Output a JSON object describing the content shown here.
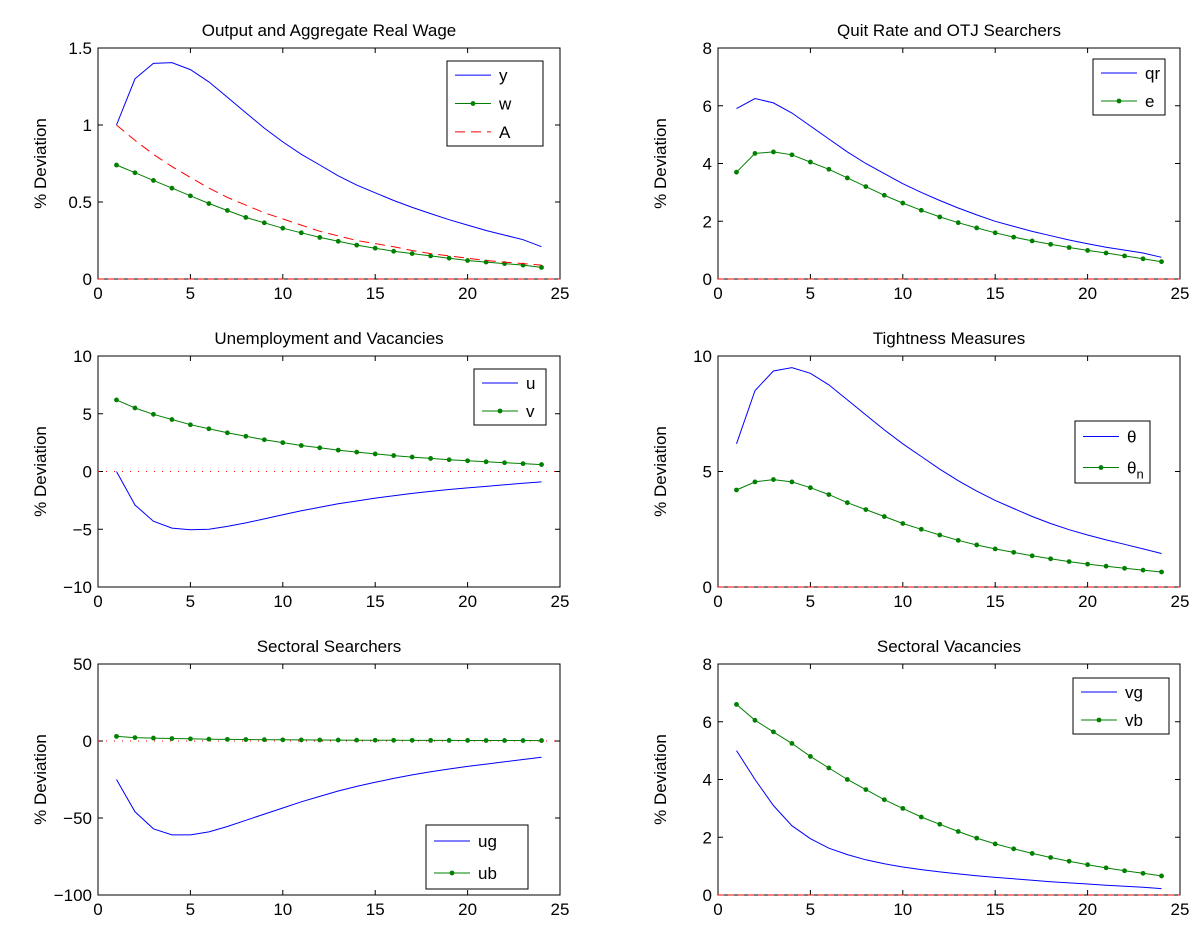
{
  "colors": {
    "series1": "#0000ff",
    "series2": "#008000",
    "series3": "#ff0000",
    "zero_line": "#ff0000",
    "axes": "#000000"
  },
  "chart_data": [
    {
      "type": "line",
      "title": "Output and Aggregate Real Wage",
      "ylabel": "% Deviation",
      "xlim": [
        0,
        25
      ],
      "ylim": [
        0,
        1.5
      ],
      "xticks": [
        0,
        5,
        10,
        15,
        20,
        25
      ],
      "yticks": [
        0,
        0.5,
        1,
        1.5
      ],
      "xtick_labels": [
        "0",
        "5",
        "10",
        "15",
        "20",
        "25"
      ],
      "ytick_labels": [
        "0",
        "0.5",
        "1",
        "1.5"
      ],
      "legend_position": "top-right",
      "zero_line": "dashed",
      "grid": false,
      "x": [
        1,
        2,
        3,
        4,
        5,
        6,
        7,
        8,
        9,
        10,
        11,
        12,
        13,
        14,
        15,
        16,
        17,
        18,
        19,
        20,
        21,
        22,
        23,
        24
      ],
      "series": [
        {
          "name": "y",
          "style": "solid",
          "color": "#0000ff",
          "values": [
            1.0,
            1.3,
            1.4,
            1.405,
            1.36,
            1.28,
            1.18,
            1.08,
            0.98,
            0.89,
            0.81,
            0.74,
            0.67,
            0.61,
            0.56,
            0.51,
            0.465,
            0.425,
            0.385,
            0.35,
            0.315,
            0.285,
            0.255,
            0.21
          ]
        },
        {
          "name": "w",
          "style": "dot-line",
          "color": "#008000",
          "values": [
            0.74,
            0.69,
            0.64,
            0.59,
            0.54,
            0.49,
            0.445,
            0.4,
            0.365,
            0.33,
            0.3,
            0.27,
            0.245,
            0.22,
            0.2,
            0.18,
            0.165,
            0.15,
            0.135,
            0.12,
            0.11,
            0.1,
            0.09,
            0.075
          ]
        },
        {
          "name": "A",
          "style": "dashed",
          "color": "#ff0000",
          "values": [
            1.0,
            0.9,
            0.81,
            0.73,
            0.66,
            0.59,
            0.53,
            0.48,
            0.43,
            0.39,
            0.35,
            0.31,
            0.28,
            0.25,
            0.23,
            0.21,
            0.185,
            0.165,
            0.15,
            0.135,
            0.12,
            0.11,
            0.1,
            0.09
          ]
        }
      ]
    },
    {
      "type": "line",
      "title": "Quit Rate and OTJ Searchers",
      "ylabel": "% Deviation",
      "xlim": [
        0,
        25
      ],
      "ylim": [
        0,
        8
      ],
      "xticks": [
        0,
        5,
        10,
        15,
        20,
        25
      ],
      "yticks": [
        0,
        2,
        4,
        6,
        8
      ],
      "xtick_labels": [
        "0",
        "5",
        "10",
        "15",
        "20",
        "25"
      ],
      "ytick_labels": [
        "0",
        "2",
        "4",
        "6",
        "8"
      ],
      "legend_position": "top-right",
      "zero_line": "dashed",
      "grid": false,
      "x": [
        1,
        2,
        3,
        4,
        5,
        6,
        7,
        8,
        9,
        10,
        11,
        12,
        13,
        14,
        15,
        16,
        17,
        18,
        19,
        20,
        21,
        22,
        23,
        24
      ],
      "series": [
        {
          "name": "qr",
          "style": "solid",
          "color": "#0000ff",
          "values": [
            5.9,
            6.25,
            6.1,
            5.75,
            5.3,
            4.85,
            4.4,
            4.0,
            3.65,
            3.3,
            3.0,
            2.72,
            2.46,
            2.22,
            2.0,
            1.82,
            1.65,
            1.5,
            1.35,
            1.22,
            1.1,
            1.0,
            0.9,
            0.75
          ]
        },
        {
          "name": "e",
          "style": "dot-line",
          "color": "#008000",
          "values": [
            3.7,
            4.35,
            4.4,
            4.3,
            4.05,
            3.8,
            3.5,
            3.2,
            2.9,
            2.63,
            2.38,
            2.15,
            1.95,
            1.77,
            1.6,
            1.45,
            1.32,
            1.2,
            1.09,
            0.99,
            0.9,
            0.8,
            0.7,
            0.6
          ]
        }
      ]
    },
    {
      "type": "line",
      "title": "Unemployment and Vacancies",
      "ylabel": "% Deviation",
      "xlim": [
        0,
        25
      ],
      "ylim": [
        -10,
        10
      ],
      "xticks": [
        0,
        5,
        10,
        15,
        20,
        25
      ],
      "yticks": [
        -10,
        -5,
        0,
        5,
        10
      ],
      "xtick_labels": [
        "0",
        "5",
        "10",
        "15",
        "20",
        "25"
      ],
      "ytick_labels": [
        "−10",
        "−5",
        "0",
        "5",
        "10"
      ],
      "legend_position": "top-right",
      "zero_line": "dotted",
      "grid": false,
      "x": [
        1,
        2,
        3,
        4,
        5,
        6,
        7,
        8,
        9,
        10,
        11,
        12,
        13,
        14,
        15,
        16,
        17,
        18,
        19,
        20,
        21,
        22,
        23,
        24
      ],
      "series": [
        {
          "name": "u",
          "style": "solid",
          "color": "#0000ff",
          "values": [
            0,
            -2.9,
            -4.3,
            -4.9,
            -5.05,
            -5.0,
            -4.75,
            -4.45,
            -4.1,
            -3.75,
            -3.4,
            -3.1,
            -2.8,
            -2.55,
            -2.3,
            -2.1,
            -1.9,
            -1.72,
            -1.56,
            -1.42,
            -1.29,
            -1.15,
            -1.02,
            -0.9
          ]
        },
        {
          "name": "v",
          "style": "dot-line",
          "color": "#008000",
          "values": [
            6.2,
            5.5,
            4.95,
            4.5,
            4.05,
            3.7,
            3.35,
            3.05,
            2.75,
            2.5,
            2.25,
            2.05,
            1.85,
            1.68,
            1.52,
            1.38,
            1.25,
            1.13,
            1.02,
            0.93,
            0.84,
            0.76,
            0.68,
            0.6
          ]
        }
      ]
    },
    {
      "type": "line",
      "title": "Tightness Measures",
      "ylabel": "% Deviation",
      "xlim": [
        0,
        25
      ],
      "ylim": [
        0,
        10
      ],
      "xticks": [
        0,
        5,
        10,
        15,
        20,
        25
      ],
      "yticks": [
        0,
        5,
        10
      ],
      "xtick_labels": [
        "0",
        "5",
        "10",
        "15",
        "20",
        "25"
      ],
      "ytick_labels": [
        "0",
        "5",
        "10"
      ],
      "legend_position": "top-right",
      "zero_line": "dashed",
      "grid": false,
      "x": [
        1,
        2,
        3,
        4,
        5,
        6,
        7,
        8,
        9,
        10,
        11,
        12,
        13,
        14,
        15,
        16,
        17,
        18,
        19,
        20,
        21,
        22,
        23,
        24
      ],
      "series": [
        {
          "name": "θ",
          "label_main": "θ",
          "label_sub": "",
          "style": "solid",
          "color": "#0000ff",
          "values": [
            6.2,
            8.5,
            9.35,
            9.5,
            9.25,
            8.75,
            8.1,
            7.45,
            6.8,
            6.2,
            5.65,
            5.1,
            4.6,
            4.15,
            3.75,
            3.4,
            3.05,
            2.75,
            2.48,
            2.25,
            2.04,
            1.85,
            1.65,
            1.45
          ]
        },
        {
          "name": "θn",
          "label_main": "θ",
          "label_sub": "n",
          "style": "dot-line",
          "color": "#008000",
          "values": [
            4.2,
            4.55,
            4.65,
            4.55,
            4.3,
            4.0,
            3.65,
            3.35,
            3.05,
            2.75,
            2.5,
            2.25,
            2.02,
            1.82,
            1.65,
            1.5,
            1.35,
            1.22,
            1.1,
            0.99,
            0.9,
            0.81,
            0.73,
            0.65
          ]
        }
      ]
    },
    {
      "type": "line",
      "title": "Sectoral Searchers",
      "ylabel": "% Deviation",
      "xlim": [
        0,
        25
      ],
      "ylim": [
        -100,
        50
      ],
      "xticks": [
        0,
        5,
        10,
        15,
        20,
        25
      ],
      "yticks": [
        -100,
        -50,
        0,
        50
      ],
      "xtick_labels": [
        "0",
        "5",
        "10",
        "15",
        "20",
        "25"
      ],
      "ytick_labels": [
        "−100",
        "−50",
        "0",
        "50"
      ],
      "legend_position": "bottom-right",
      "zero_line": "dotted",
      "grid": false,
      "x": [
        1,
        2,
        3,
        4,
        5,
        6,
        7,
        8,
        9,
        10,
        11,
        12,
        13,
        14,
        15,
        16,
        17,
        18,
        19,
        20,
        21,
        22,
        23,
        24
      ],
      "series": [
        {
          "name": "ug",
          "style": "solid",
          "color": "#0000ff",
          "values": [
            -25,
            -46,
            -57,
            -61,
            -61,
            -59,
            -55.5,
            -51.5,
            -47.5,
            -43.5,
            -39.5,
            -36,
            -32.5,
            -29.5,
            -26.8,
            -24.3,
            -22,
            -20,
            -18.2,
            -16.5,
            -15,
            -13.5,
            -12,
            -10.5
          ]
        },
        {
          "name": "ub",
          "style": "dot-line",
          "color": "#008000",
          "values": [
            3,
            2.2,
            1.9,
            1.6,
            1.4,
            1.2,
            1.05,
            0.95,
            0.85,
            0.75,
            0.7,
            0.65,
            0.6,
            0.55,
            0.5,
            0.45,
            0.42,
            0.4,
            0.37,
            0.35,
            0.33,
            0.31,
            0.3,
            0.28
          ]
        }
      ]
    },
    {
      "type": "line",
      "title": "Sectoral Vacancies",
      "ylabel": "% Deviation",
      "xlim": [
        0,
        25
      ],
      "ylim": [
        0,
        8
      ],
      "xticks": [
        0,
        5,
        10,
        15,
        20,
        25
      ],
      "yticks": [
        0,
        2,
        4,
        6,
        8
      ],
      "xtick_labels": [
        "0",
        "5",
        "10",
        "15",
        "20",
        "25"
      ],
      "ytick_labels": [
        "0",
        "2",
        "4",
        "6",
        "8"
      ],
      "legend_position": "top-right",
      "zero_line": "dashed",
      "grid": false,
      "x": [
        1,
        2,
        3,
        4,
        5,
        6,
        7,
        8,
        9,
        10,
        11,
        12,
        13,
        14,
        15,
        16,
        17,
        18,
        19,
        20,
        21,
        22,
        23,
        24
      ],
      "series": [
        {
          "name": "vg",
          "style": "solid",
          "color": "#0000ff",
          "values": [
            5.0,
            4.0,
            3.1,
            2.4,
            1.95,
            1.62,
            1.4,
            1.22,
            1.08,
            0.97,
            0.88,
            0.8,
            0.73,
            0.67,
            0.61,
            0.56,
            0.51,
            0.46,
            0.42,
            0.38,
            0.34,
            0.3,
            0.27,
            0.22
          ]
        },
        {
          "name": "vb",
          "style": "dot-line",
          "color": "#008000",
          "values": [
            6.6,
            6.05,
            5.65,
            5.25,
            4.8,
            4.4,
            4.0,
            3.65,
            3.3,
            3.0,
            2.7,
            2.45,
            2.2,
            1.97,
            1.77,
            1.6,
            1.44,
            1.3,
            1.17,
            1.05,
            0.94,
            0.84,
            0.75,
            0.66
          ]
        }
      ]
    }
  ]
}
